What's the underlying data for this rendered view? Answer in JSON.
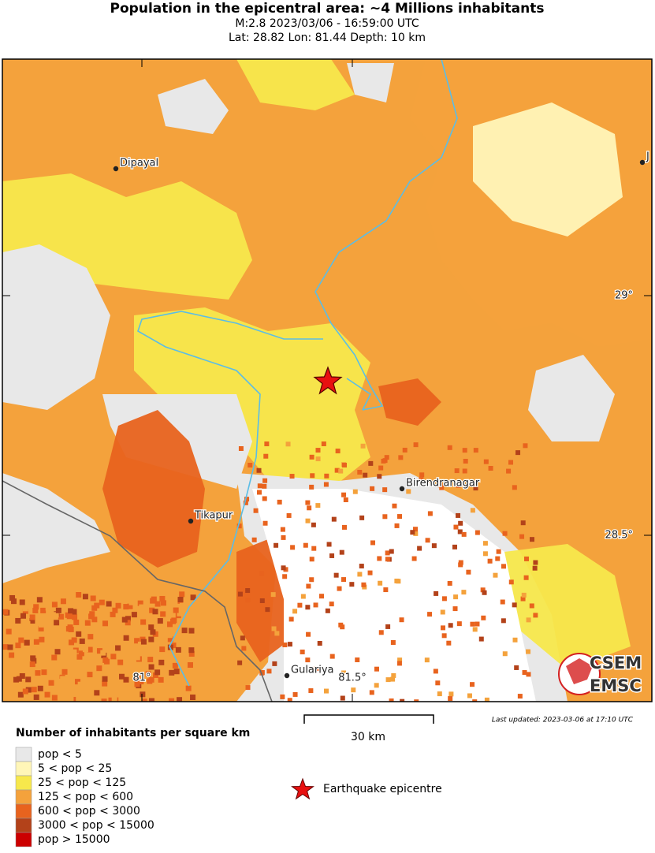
{
  "header": {
    "title": "Population in the epicentral area: ~4 Millions inhabitants",
    "line1": "M:2.8 2023/03/06 - 16:59:00 UTC",
    "line2": "Lat: 28.82 Lon: 81.44 Depth: 10 km"
  },
  "map": {
    "cities": [
      {
        "label": "Dipayal"
      },
      {
        "label": "J"
      },
      {
        "label": "Tikapur"
      },
      {
        "label": "Birendranagar"
      },
      {
        "label": "Gulariya"
      }
    ],
    "lat_labels": [
      "29°",
      "28.5°"
    ],
    "lon_labels": [
      "81°",
      "81.5°"
    ],
    "scale": "30 km",
    "updated": "Last updated: 2023-03-06 at 17:10 UTC",
    "logo": [
      "CSEM",
      "EMSC"
    ]
  },
  "legend": {
    "title": "Number of inhabitants per square km",
    "entries": [
      {
        "label": "pop < 5",
        "color": "#e8e8e8"
      },
      {
        "label": "5 < pop < 25",
        "color": "#fff6b8"
      },
      {
        "label": "25 < pop < 125",
        "color": "#f7e84c"
      },
      {
        "label": "125 < pop < 600",
        "color": "#f4a23c"
      },
      {
        "label": "600 < pop < 3000",
        "color": "#e8631e"
      },
      {
        "label": "3000 < pop < 15000",
        "color": "#b3421a"
      },
      {
        "label": "pop > 15000",
        "color": "#cc0000"
      }
    ],
    "epicentre": "Earthquake epicentre"
  }
}
